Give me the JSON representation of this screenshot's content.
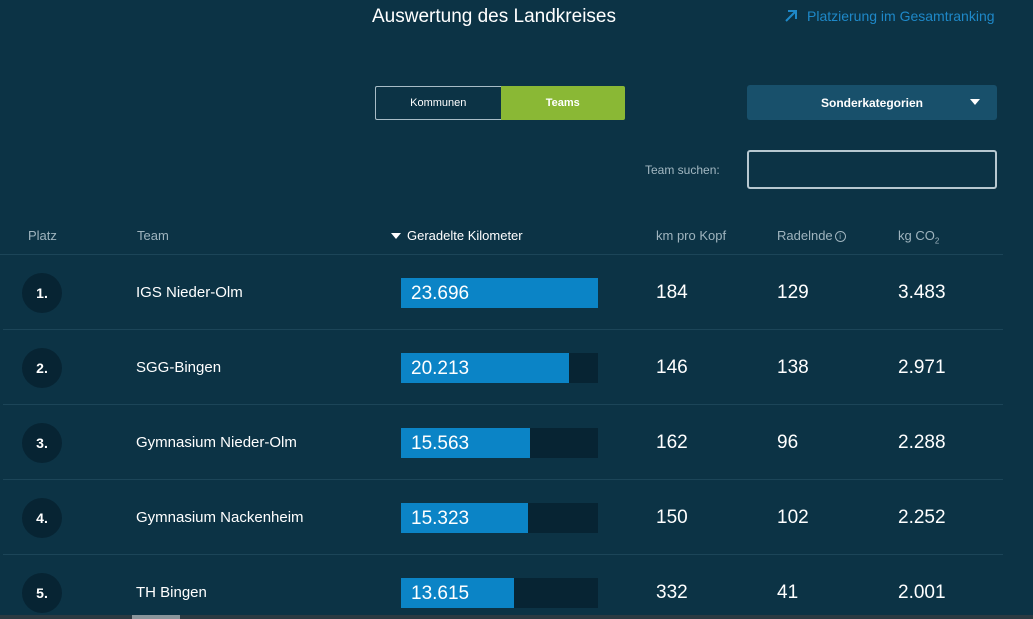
{
  "header": {
    "title": "Auswertung des Landkreises",
    "ranking_link": "Platzierung im Gesamtranking"
  },
  "toggle": {
    "kommunen": "Kommunen",
    "teams": "Teams"
  },
  "special_dropdown": {
    "label": "Sonderkategorien"
  },
  "search": {
    "label": "Team suchen:",
    "value": ""
  },
  "table": {
    "headers": {
      "platz": "Platz",
      "team": "Team",
      "km": "Geradelte Kilometer",
      "km_per_head": "km pro Kopf",
      "cyclists": "Radelnde",
      "co2_prefix": "kg CO",
      "co2_sub": "2"
    },
    "max_km": 23.696,
    "rows": [
      {
        "rank": "1.",
        "team": "IGS Nieder-Olm",
        "km": "23.696",
        "km_value": 23.696,
        "km_per_head": "184",
        "cyclists": "129",
        "co2": "3.483"
      },
      {
        "rank": "2.",
        "team": "SGG-Bingen",
        "km": "20.213",
        "km_value": 20.213,
        "km_per_head": "146",
        "cyclists": "138",
        "co2": "2.971"
      },
      {
        "rank": "3.",
        "team": "Gymnasium Nieder-Olm",
        "km": "15.563",
        "km_value": 15.563,
        "km_per_head": "162",
        "cyclists": "96",
        "co2": "2.288"
      },
      {
        "rank": "4.",
        "team": "Gymnasium Nackenheim",
        "km": "15.323",
        "km_value": 15.323,
        "km_per_head": "150",
        "cyclists": "102",
        "co2": "2.252"
      },
      {
        "rank": "5.",
        "team": "TH Bingen",
        "km": "13.615",
        "km_value": 13.615,
        "km_per_head": "332",
        "cyclists": "41",
        "co2": "2.001"
      }
    ]
  },
  "colors": {
    "background": "#0c3345",
    "accent_green": "#8ab835",
    "bar_blue": "#0b84c6",
    "link_blue": "#1e88c8"
  }
}
